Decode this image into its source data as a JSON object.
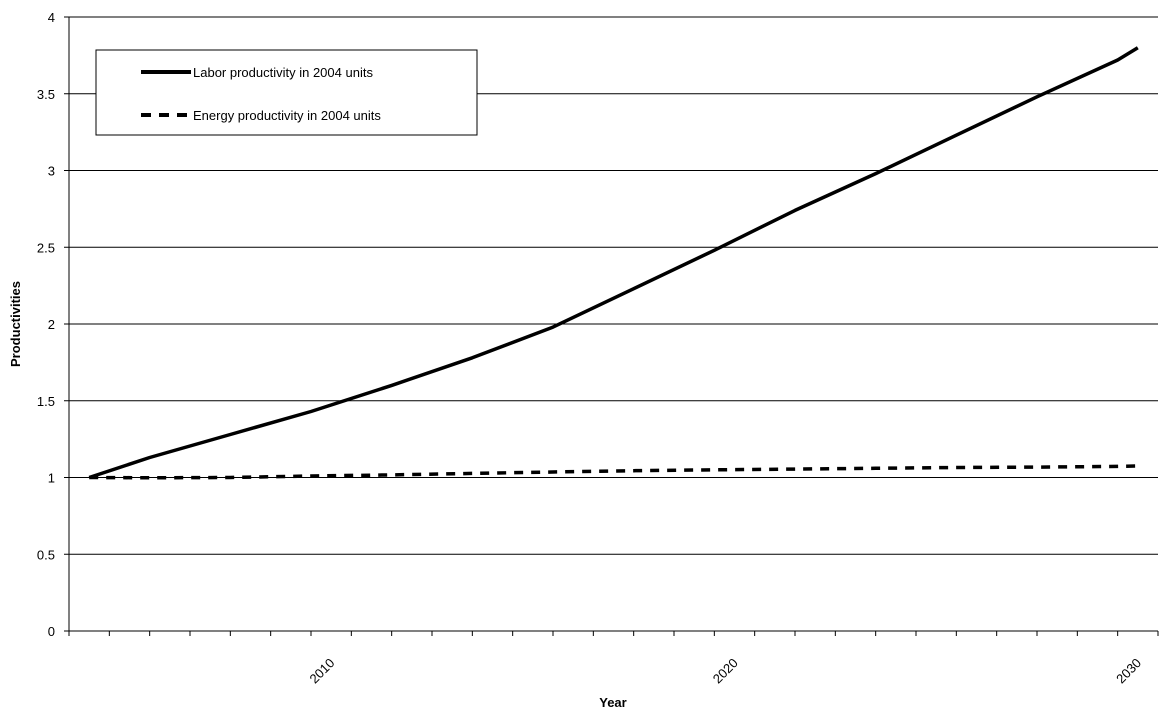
{
  "chart_data": {
    "type": "line",
    "xlabel": "Year",
    "ylabel": "Productivities",
    "xlim": [
      2004,
      2031
    ],
    "ylim": [
      0,
      4
    ],
    "y_ticks": [
      0,
      0.5,
      1,
      1.5,
      2,
      2.5,
      3,
      3.5,
      4
    ],
    "y_tick_labels": [
      "0",
      "0.5",
      "1",
      "1.5",
      "2",
      "2.5",
      "3",
      "3.5",
      "4"
    ],
    "x_tick_labels": [
      "2010",
      "2020",
      "2030"
    ],
    "x_labeled_ticks": [
      2010,
      2020,
      2030
    ],
    "grid": true,
    "legend_position": "top-left",
    "series": [
      {
        "name": "Labor productivity in 2004 units",
        "style": "solid",
        "color": "#000000",
        "x": [
          2004.5,
          2006,
          2008,
          2010,
          2012,
          2014,
          2016,
          2018,
          2020,
          2022,
          2024,
          2026,
          2028,
          2030,
          2030.5
        ],
        "y": [
          1.0,
          1.13,
          1.28,
          1.43,
          1.6,
          1.78,
          1.98,
          2.23,
          2.48,
          2.74,
          2.98,
          3.23,
          3.48,
          3.72,
          3.8
        ]
      },
      {
        "name": "Energy productivity in 2004 units",
        "style": "dashed",
        "color": "#000000",
        "x": [
          2004.5,
          2006,
          2008,
          2010,
          2012,
          2014,
          2016,
          2018,
          2020,
          2022,
          2024,
          2026,
          2028,
          2030,
          2030.5
        ],
        "y": [
          1.0,
          0.998,
          1.0,
          1.01,
          1.017,
          1.027,
          1.036,
          1.044,
          1.05,
          1.055,
          1.06,
          1.065,
          1.068,
          1.072,
          1.075
        ]
      }
    ]
  }
}
